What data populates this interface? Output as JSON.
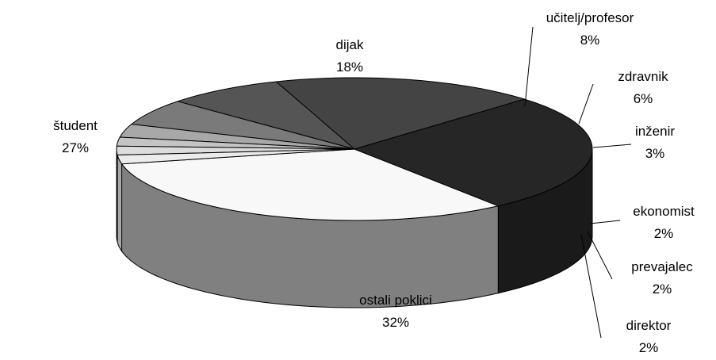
{
  "chart_data": {
    "type": "pie",
    "three_d": true,
    "legend": "none",
    "slices": [
      {
        "label": "ostali poklici",
        "value": 32,
        "display": "32%",
        "color": "#f8f8f8",
        "side": "#808080"
      },
      {
        "label": "študent",
        "value": 27,
        "display": "27%",
        "color": "#262626",
        "side": "#1a1a1a"
      },
      {
        "label": "dijak",
        "value": 18,
        "display": "18%",
        "color": "#444444",
        "side": "#2e2e2e"
      },
      {
        "label": "učitelj/profesor",
        "value": 8,
        "display": "8%",
        "color": "#555555",
        "side": "#3a3a3a"
      },
      {
        "label": "zdravnik",
        "value": 6,
        "display": "6%",
        "color": "#7a7a7a",
        "side": "#555555"
      },
      {
        "label": "inženir",
        "value": 3,
        "display": "3%",
        "color": "#a8a8a8",
        "side": "#707070"
      },
      {
        "label": "ekonomist",
        "value": 2,
        "display": "2%",
        "color": "#c4c4c4",
        "side": "#8a8a8a"
      },
      {
        "label": "prevajalec",
        "value": 2,
        "display": "2%",
        "color": "#dcdcdc",
        "side": "#9a9a9a"
      },
      {
        "label": "direktor",
        "value": 2,
        "display": "2%",
        "color": "#ececec",
        "side": "#a8a8a8"
      }
    ]
  }
}
